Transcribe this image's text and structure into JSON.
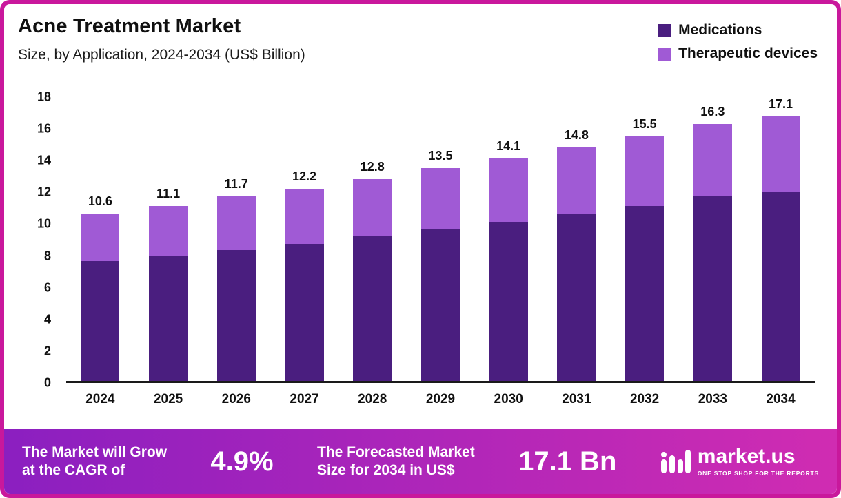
{
  "header": {
    "title": "Acne Treatment Market",
    "subtitle": "Size, by Application, 2024-2034 (US$ Billion)"
  },
  "legend": [
    {
      "label": "Medications",
      "color": "#4a1e7f"
    },
    {
      "label": "Therapeutic devices",
      "color": "#a05ad5"
    }
  ],
  "chart_data": {
    "type": "bar",
    "stacked": true,
    "title": "Acne Treatment Market",
    "subtitle": "Size, by Application, 2024-2034 (US$ Billion)",
    "unit": "US$ Billion",
    "categories": [
      "2024",
      "2025",
      "2026",
      "2027",
      "2028",
      "2029",
      "2030",
      "2031",
      "2032",
      "2033",
      "2034"
    ],
    "series": [
      {
        "name": "Medications",
        "color": "#4a1e7f",
        "values": [
          7.6,
          7.9,
          8.3,
          8.7,
          9.2,
          9.6,
          10.1,
          10.6,
          11.1,
          11.7,
          12.2
        ]
      },
      {
        "name": "Therapeutic devices",
        "color": "#a05ad5",
        "values": [
          3.0,
          3.2,
          3.4,
          3.5,
          3.6,
          3.9,
          4.0,
          4.2,
          4.4,
          4.6,
          4.9
        ]
      }
    ],
    "totals": [
      10.6,
      11.1,
      11.7,
      12.2,
      12.8,
      13.5,
      14.1,
      14.8,
      15.5,
      16.3,
      17.1
    ],
    "ylim": [
      0,
      18
    ],
    "yticks": [
      0,
      2,
      4,
      6,
      8,
      10,
      12,
      14,
      16,
      18
    ],
    "grid": false,
    "legend_position": "top-right"
  },
  "footer": {
    "cagr_label": "The Market will Grow\nat the CAGR of",
    "cagr_value": "4.9%",
    "forecast_label": "The Forecasted Market\nSize for 2034 in US$",
    "forecast_value": "17.1 Bn",
    "brand": "market.us",
    "brand_tagline": "ONE STOP SHOP FOR THE REPORTS"
  },
  "colors": {
    "border": "#c9189c",
    "gradient_left": "#8b1fc0",
    "gradient_right": "#d02cb2",
    "medications": "#4a1e7f",
    "devices": "#a05ad5"
  }
}
